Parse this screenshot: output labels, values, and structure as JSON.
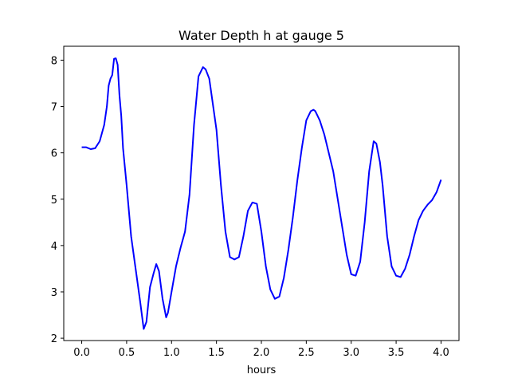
{
  "chart_data": {
    "type": "line",
    "title": "Water Depth h at gauge 5",
    "xlabel": "hours",
    "ylabel": "",
    "xlim": [
      -0.2,
      4.2
    ],
    "ylim": [
      1.95,
      8.3
    ],
    "xticks": [
      0.0,
      0.5,
      1.0,
      1.5,
      2.0,
      2.5,
      3.0,
      3.5,
      4.0
    ],
    "xtick_labels": [
      "0.0",
      "0.5",
      "1.0",
      "1.5",
      "2.0",
      "2.5",
      "3.0",
      "3.5",
      "4.0"
    ],
    "yticks": [
      2,
      3,
      4,
      5,
      6,
      7,
      8
    ],
    "ytick_labels": [
      "2",
      "3",
      "4",
      "5",
      "6",
      "7",
      "8"
    ],
    "grid": false,
    "series": [
      {
        "color": "#0000ff",
        "x": [
          0.0,
          0.05,
          0.1,
          0.15,
          0.2,
          0.25,
          0.28,
          0.3,
          0.32,
          0.34,
          0.36,
          0.38,
          0.4,
          0.42,
          0.44,
          0.46,
          0.5,
          0.55,
          0.6,
          0.65,
          0.69,
          0.72,
          0.76,
          0.8,
          0.83,
          0.86,
          0.9,
          0.94,
          0.96,
          1.0,
          1.05,
          1.1,
          1.15,
          1.2,
          1.25,
          1.3,
          1.35,
          1.38,
          1.42,
          1.5,
          1.55,
          1.6,
          1.65,
          1.7,
          1.75,
          1.8,
          1.85,
          1.9,
          1.95,
          2.0,
          2.05,
          2.1,
          2.15,
          2.2,
          2.25,
          2.3,
          2.35,
          2.4,
          2.45,
          2.5,
          2.55,
          2.58,
          2.6,
          2.65,
          2.7,
          2.75,
          2.8,
          2.85,
          2.9,
          2.95,
          3.0,
          3.05,
          3.1,
          3.15,
          3.2,
          3.25,
          3.28,
          3.32,
          3.35,
          3.4,
          3.45,
          3.5,
          3.55,
          3.6,
          3.65,
          3.7,
          3.75,
          3.8,
          3.85,
          3.9,
          3.95,
          4.0
        ],
        "y": [
          6.12,
          6.12,
          6.08,
          6.1,
          6.25,
          6.6,
          7.0,
          7.45,
          7.6,
          7.68,
          8.03,
          8.04,
          7.9,
          7.25,
          6.8,
          6.1,
          5.3,
          4.2,
          3.5,
          2.8,
          2.2,
          2.35,
          3.1,
          3.4,
          3.6,
          3.45,
          2.85,
          2.45,
          2.55,
          3.0,
          3.55,
          3.95,
          4.3,
          5.1,
          6.6,
          7.65,
          7.85,
          7.8,
          7.6,
          6.5,
          5.3,
          4.3,
          3.75,
          3.7,
          3.75,
          4.2,
          4.75,
          4.93,
          4.9,
          4.3,
          3.55,
          3.05,
          2.85,
          2.9,
          3.3,
          3.9,
          4.6,
          5.4,
          6.1,
          6.7,
          6.9,
          6.93,
          6.9,
          6.7,
          6.4,
          6.0,
          5.6,
          5.0,
          4.4,
          3.8,
          3.38,
          3.35,
          3.65,
          4.5,
          5.6,
          6.25,
          6.2,
          5.8,
          5.3,
          4.2,
          3.55,
          3.35,
          3.32,
          3.5,
          3.8,
          4.2,
          4.55,
          4.75,
          4.88,
          4.98,
          5.15,
          5.42
        ]
      }
    ]
  }
}
